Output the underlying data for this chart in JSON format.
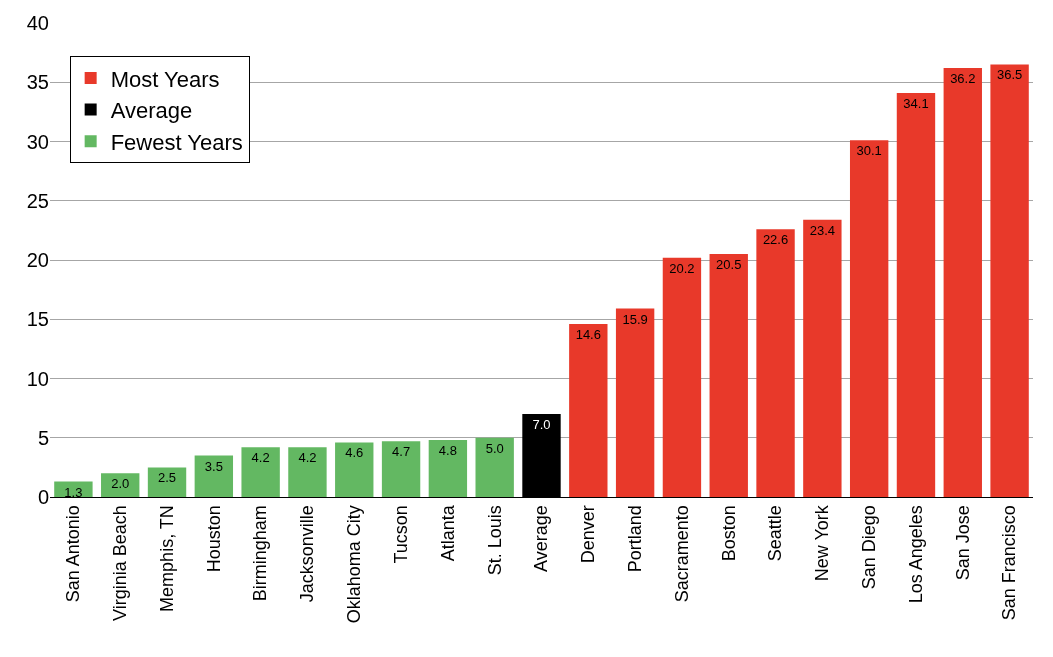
{
  "chart_data": {
    "type": "bar",
    "categories": [
      "San Antonio",
      "Virginia Beach",
      "Memphis, TN",
      "Houston",
      "Birmingham",
      "Jacksonville",
      "Oklahoma City",
      "Tucson",
      "Atlanta",
      "St. Louis",
      "Average",
      "Denver",
      "Portland",
      "Sacramento",
      "Boston",
      "Seattle",
      "New York",
      "San Diego",
      "Los Angeles",
      "San Jose",
      "San Francisco"
    ],
    "series": [
      {
        "name": "Most Years",
        "color": "#e8392a",
        "values": [
          null,
          null,
          null,
          null,
          null,
          null,
          null,
          null,
          null,
          null,
          null,
          14.6,
          15.9,
          20.2,
          20.5,
          22.6,
          23.4,
          30.1,
          34.1,
          36.2,
          36.5
        ],
        "value_labels": [
          null,
          null,
          null,
          null,
          null,
          null,
          null,
          null,
          null,
          null,
          null,
          "14.6",
          "15.9",
          "20.2",
          "20.5",
          "22.6",
          "23.4",
          "30.1",
          "34.1",
          "36.2",
          "36.5"
        ]
      },
      {
        "name": "Average",
        "color": "#000000",
        "values": [
          null,
          null,
          null,
          null,
          null,
          null,
          null,
          null,
          null,
          null,
          7.0,
          null,
          null,
          null,
          null,
          null,
          null,
          null,
          null,
          null,
          null
        ],
        "value_labels": [
          null,
          null,
          null,
          null,
          null,
          null,
          null,
          null,
          null,
          null,
          "7.0",
          null,
          null,
          null,
          null,
          null,
          null,
          null,
          null,
          null,
          null
        ]
      },
      {
        "name": "Fewest Years",
        "color": "#63b862",
        "values": [
          1.3,
          2.0,
          2.5,
          3.5,
          4.2,
          4.2,
          4.6,
          4.7,
          4.8,
          5.0,
          null,
          null,
          null,
          null,
          null,
          null,
          null,
          null,
          null,
          null,
          null
        ],
        "value_labels": [
          "1.3",
          "2.0",
          "2.5",
          "3.5",
          "4.2",
          "4.2",
          "4.6",
          "4.7",
          "4.8",
          "5.0",
          null,
          null,
          null,
          null,
          null,
          null,
          null,
          null,
          null,
          null,
          null
        ]
      }
    ],
    "ylim": [
      0,
      40
    ],
    "yticks": [
      0,
      5,
      10,
      15,
      20,
      25,
      30,
      35,
      40
    ],
    "grid": "y",
    "legend": "top left"
  }
}
